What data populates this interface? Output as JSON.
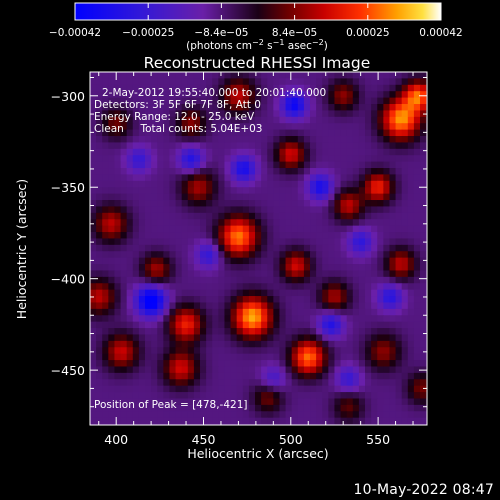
{
  "app": {
    "timestamp": "10-May-2022 08:47"
  },
  "chart_data": {
    "type": "heatmap",
    "title": "Reconstructed RHESSI Image",
    "xlabel": "Heliocentric X (arcsec)",
    "ylabel": "Heliocentric Y (arcsec)",
    "xlim": [
      385,
      578
    ],
    "ylim": [
      -480,
      -287
    ],
    "x_ticks": [
      {
        "value": 400,
        "label": "400"
      },
      {
        "value": 450,
        "label": "450"
      },
      {
        "value": 500,
        "label": "500"
      },
      {
        "value": 550,
        "label": "550"
      }
    ],
    "y_ticks": [
      {
        "value": -300,
        "label": "−300"
      },
      {
        "value": -350,
        "label": "−350"
      },
      {
        "value": -400,
        "label": "−400"
      },
      {
        "value": -450,
        "label": "−450"
      }
    ],
    "annotations": [
      "2-May-2012 19:55:40.000 to 20:01:40.000",
      "Detectors: 3F 5F 6F 7F 8F, Att 0",
      "Energy Range: 12.0 - 25.0 keV",
      "Clean     Total counts: 5.04E+03"
    ],
    "peak_label": "Position of Peak = [478,-421]",
    "colorbar": {
      "range": [
        -0.00042,
        0.00042
      ],
      "tick_labels": [
        "−0.00042",
        "−0.00025",
        "−8.4e−05",
        "8.4e−05",
        "0.00025",
        "0.00042"
      ],
      "unit_parts": [
        "(photons cm",
        "−2",
        " s",
        "−1",
        " asec",
        "−2",
        ")"
      ]
    },
    "grid": false,
    "sources": [
      {
        "x": 478,
        "y": -421,
        "amp": 1.0,
        "sigma": 8
      },
      {
        "x": 470,
        "y": -377,
        "amp": 0.9,
        "sigma": 8
      },
      {
        "x": 510,
        "y": -443,
        "amp": 0.88,
        "sigma": 7
      },
      {
        "x": 563,
        "y": -313,
        "amp": 0.95,
        "sigma": 8
      },
      {
        "x": 573,
        "y": -300,
        "amp": 0.8,
        "sigma": 6
      },
      {
        "x": 550,
        "y": -350,
        "amp": 0.7,
        "sigma": 6
      },
      {
        "x": 533,
        "y": -360,
        "amp": 0.55,
        "sigma": 6
      },
      {
        "x": 563,
        "y": -392,
        "amp": 0.55,
        "sigma": 6
      },
      {
        "x": 503,
        "y": -393,
        "amp": 0.6,
        "sigma": 6
      },
      {
        "x": 525,
        "y": -410,
        "amp": 0.5,
        "sigma": 6
      },
      {
        "x": 397,
        "y": -370,
        "amp": 0.55,
        "sigma": 7
      },
      {
        "x": 390,
        "y": -410,
        "amp": 0.55,
        "sigma": 7
      },
      {
        "x": 403,
        "y": -440,
        "amp": 0.58,
        "sigma": 7
      },
      {
        "x": 440,
        "y": -425,
        "amp": 0.7,
        "sigma": 7
      },
      {
        "x": 437,
        "y": -449,
        "amp": 0.6,
        "sigma": 7
      },
      {
        "x": 423,
        "y": -395,
        "amp": 0.5,
        "sigma": 6
      },
      {
        "x": 447,
        "y": -350,
        "amp": 0.5,
        "sigma": 7
      },
      {
        "x": 500,
        "y": -332,
        "amp": 0.6,
        "sigma": 6
      },
      {
        "x": 470,
        "y": -300,
        "amp": 0.55,
        "sigma": 7
      },
      {
        "x": 443,
        "y": -315,
        "amp": 0.45,
        "sigma": 6
      },
      {
        "x": 400,
        "y": -315,
        "amp": 0.4,
        "sigma": 6
      },
      {
        "x": 530,
        "y": -300,
        "amp": 0.45,
        "sigma": 6
      },
      {
        "x": 553,
        "y": -440,
        "amp": 0.45,
        "sigma": 7
      },
      {
        "x": 575,
        "y": -460,
        "amp": 0.4,
        "sigma": 6
      },
      {
        "x": 487,
        "y": -465,
        "amp": 0.4,
        "sigma": 6
      },
      {
        "x": 533,
        "y": -470,
        "amp": 0.35,
        "sigma": 6
      },
      {
        "x": 420,
        "y": -412,
        "amp": -0.9,
        "sigma": 6
      },
      {
        "x": 502,
        "y": -305,
        "amp": -0.7,
        "sigma": 5
      },
      {
        "x": 517,
        "y": -350,
        "amp": -0.6,
        "sigma": 5
      },
      {
        "x": 443,
        "y": -335,
        "amp": -0.55,
        "sigma": 5
      },
      {
        "x": 473,
        "y": -340,
        "amp": -0.6,
        "sigma": 5
      },
      {
        "x": 453,
        "y": -387,
        "amp": -0.45,
        "sigma": 5
      },
      {
        "x": 523,
        "y": -425,
        "amp": -0.55,
        "sigma": 5
      },
      {
        "x": 557,
        "y": -410,
        "amp": -0.5,
        "sigma": 5
      },
      {
        "x": 540,
        "y": -380,
        "amp": -0.45,
        "sigma": 5
      },
      {
        "x": 490,
        "y": -455,
        "amp": -0.35,
        "sigma": 5
      },
      {
        "x": 533,
        "y": -455,
        "amp": -0.4,
        "sigma": 5
      },
      {
        "x": 413,
        "y": -335,
        "amp": -0.4,
        "sigma": 5
      }
    ]
  }
}
